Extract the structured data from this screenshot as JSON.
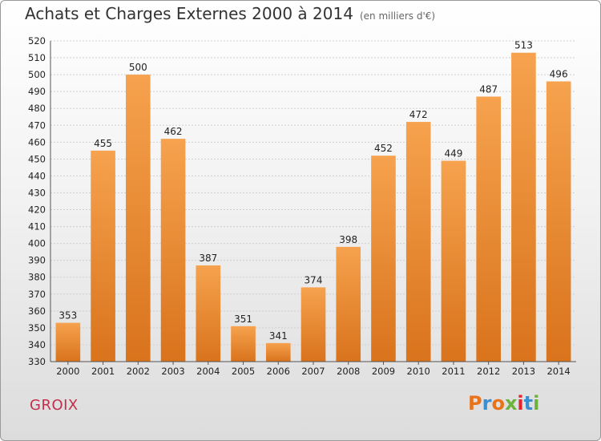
{
  "chart_data": {
    "type": "bar",
    "title": "Achats et Charges Externes 2000 à 2014",
    "subtitle": "(en milliers d'€)",
    "categories": [
      "2000",
      "2001",
      "2002",
      "2003",
      "2004",
      "2005",
      "2006",
      "2007",
      "2008",
      "2009",
      "2010",
      "2011",
      "2012",
      "2013",
      "2014"
    ],
    "values": [
      353,
      455,
      500,
      462,
      387,
      351,
      341,
      374,
      398,
      452,
      472,
      449,
      487,
      513,
      496
    ],
    "ylim": [
      330,
      520
    ],
    "ytick_step": 10,
    "xlabel": "",
    "ylabel": "",
    "grid": true,
    "bar_color": "#f0923a"
  },
  "footer": {
    "place": "GROIX",
    "brand": "Proxiti",
    "brand_colors": [
      "#e8731a",
      "#3a8fd0",
      "#e8731a",
      "#6cb33e",
      "#e3262e",
      "#3a8fd0",
      "#6cb33e"
    ]
  }
}
